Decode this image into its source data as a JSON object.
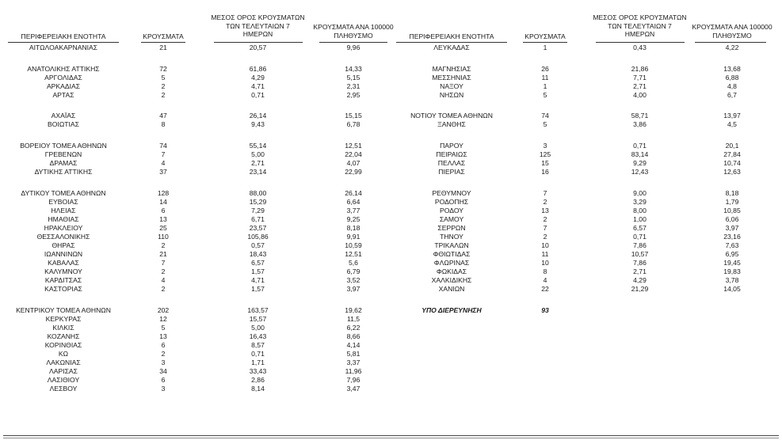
{
  "headers": {
    "region": "ΠΕΡΙΦΕΡΕΙΑΚΗ ΕΝΟΤΗΤΑ",
    "cases": "ΚΡΟΥΣΜΑΤΑ",
    "average_1": "ΜΕΣΟΣ ΟΡΟΣ ΚΡΟΥΣΜΑΤΩΝ",
    "average_2": "ΤΩΝ ΤΕΛΕΥΤΑΙΩΝ 7",
    "average_3": "ΗΜΕΡΩΝ",
    "per100k_1": "ΚΡΟΥΣΜΑΤΑ ΑΝΑ 100000",
    "per100k_2": "ΠΛΗΘΥΣΜΟ"
  },
  "left_rows": [
    {
      "region": "ΑΙΤΩΛΟΑΚΑΡΝΑΝΙΑΣ",
      "cases": "21",
      "avg": "20,57",
      "per100k": "9,96"
    },
    {
      "region": "ΑΝΑΤΟΛΙΚΗΣ ΑΤΤΙΚΗΣ",
      "cases": "72",
      "avg": "61,86",
      "per100k": "14,33",
      "gap": true
    },
    {
      "region": "ΑΡΓΟΛΙΔΑΣ",
      "cases": "5",
      "avg": "4,29",
      "per100k": "5,15"
    },
    {
      "region": "ΑΡΚΑΔΙΑΣ",
      "cases": "2",
      "avg": "4,71",
      "per100k": "2,31"
    },
    {
      "region": "ΑΡΤΑΣ",
      "cases": "2",
      "avg": "0,71",
      "per100k": "2,95"
    },
    {
      "region": "ΑΧΑΪΑΣ",
      "cases": "47",
      "avg": "26,14",
      "per100k": "15,15",
      "gap": true
    },
    {
      "region": "ΒΟΙΩΤΙΑΣ",
      "cases": "8",
      "avg": "9,43",
      "per100k": "6,78"
    },
    {
      "region": "ΒΟΡΕΙΟΥ ΤΟΜΕΑ ΑΘΗΝΩΝ",
      "cases": "74",
      "avg": "55,14",
      "per100k": "12,51",
      "gap": true
    },
    {
      "region": "ΓΡΕΒΕΝΩΝ",
      "cases": "7",
      "avg": "5,00",
      "per100k": "22,04"
    },
    {
      "region": "ΔΡΑΜΑΣ",
      "cases": "4",
      "avg": "2,71",
      "per100k": "4,07"
    },
    {
      "region": "ΔΥΤΙΚΗΣ ΑΤΤΙΚΗΣ",
      "cases": "37",
      "avg": "23,14",
      "per100k": "22,99"
    },
    {
      "region": "ΔΥΤΙΚΟΥ ΤΟΜΕΑ ΑΘΗΝΩΝ",
      "cases": "128",
      "avg": "88,00",
      "per100k": "26,14",
      "gap": true
    },
    {
      "region": "ΕΥΒΟΙΑΣ",
      "cases": "14",
      "avg": "15,29",
      "per100k": "6,64"
    },
    {
      "region": "ΗΛΕΙΑΣ",
      "cases": "6",
      "avg": "7,29",
      "per100k": "3,77"
    },
    {
      "region": "ΗΜΑΘΙΑΣ",
      "cases": "13",
      "avg": "6,71",
      "per100k": "9,25"
    },
    {
      "region": "ΗΡΑΚΛΕΙΟΥ",
      "cases": "25",
      "avg": "23,57",
      "per100k": "8,18"
    },
    {
      "region": "ΘΕΣΣΑΛΟΝΙΚΗΣ",
      "cases": "110",
      "avg": "105,86",
      "per100k": "9,91"
    },
    {
      "region": "ΘΗΡΑΣ",
      "cases": "2",
      "avg": "0,57",
      "per100k": "10,59"
    },
    {
      "region": "ΙΩΑΝΝΙΝΩΝ",
      "cases": "21",
      "avg": "18,43",
      "per100k": "12,51"
    },
    {
      "region": "ΚΑΒΑΛΑΣ",
      "cases": "7",
      "avg": "6,57",
      "per100k": "5,6"
    },
    {
      "region": "ΚΑΛΥΜΝΟΥ",
      "cases": "2",
      "avg": "1,57",
      "per100k": "6,79"
    },
    {
      "region": "ΚΑΡΔΙΤΣΑΣ",
      "cases": "4",
      "avg": "4,71",
      "per100k": "3,52"
    },
    {
      "region": "ΚΑΣΤΟΡΙΑΣ",
      "cases": "2",
      "avg": "1,57",
      "per100k": "3,97"
    },
    {
      "region": "ΚΕΝΤΡΙΚΟΥ ΤΟΜΕΑ ΑΘΗΝΩΝ",
      "cases": "202",
      "avg": "163,57",
      "per100k": "19,62",
      "gap": true
    },
    {
      "region": "ΚΕΡΚΥΡΑΣ",
      "cases": "12",
      "avg": "15,57",
      "per100k": "11,5"
    },
    {
      "region": "ΚΙΛΚΙΣ",
      "cases": "5",
      "avg": "5,00",
      "per100k": "6,22"
    },
    {
      "region": "ΚΟΖΑΝΗΣ",
      "cases": "13",
      "avg": "16,43",
      "per100k": "8,66"
    },
    {
      "region": "ΚΟΡΙΝΘΙΑΣ",
      "cases": "6",
      "avg": "8,57",
      "per100k": "4,14"
    },
    {
      "region": "ΚΩ",
      "cases": "2",
      "avg": "0,71",
      "per100k": "5,81"
    },
    {
      "region": "ΛΑΚΩΝΙΑΣ",
      "cases": "3",
      "avg": "1,71",
      "per100k": "3,37"
    },
    {
      "region": "ΛΑΡΙΣΑΣ",
      "cases": "34",
      "avg": "33,43",
      "per100k": "11,96"
    },
    {
      "region": "ΛΑΣΙΘΙΟΥ",
      "cases": "6",
      "avg": "2,86",
      "per100k": "7,96"
    },
    {
      "region": "ΛΕΣΒΟΥ",
      "cases": "3",
      "avg": "8,14",
      "per100k": "3,47"
    }
  ],
  "right_rows": [
    {
      "region": "ΛΕΥΚΑΔΑΣ",
      "cases": "1",
      "avg": "0,43",
      "per100k": "4,22"
    },
    {
      "region": "ΜΑΓΝΗΣΙΑΣ",
      "cases": "26",
      "avg": "21,86",
      "per100k": "13,68",
      "gap": true
    },
    {
      "region": "ΜΕΣΣΗΝΙΑΣ",
      "cases": "11",
      "avg": "7,71",
      "per100k": "6,88"
    },
    {
      "region": "ΝΑΞΟΥ",
      "cases": "1",
      "avg": "2,71",
      "per100k": "4,8"
    },
    {
      "region": "ΝΗΣΩΝ",
      "cases": "5",
      "avg": "4,00",
      "per100k": "6,7"
    },
    {
      "region": "ΝΟΤΙΟΥ ΤΟΜΕΑ ΑΘΗΝΩΝ",
      "cases": "74",
      "avg": "58,71",
      "per100k": "13,97",
      "gap": true
    },
    {
      "region": "ΞΑΝΘΗΣ",
      "cases": "5",
      "avg": "3,86",
      "per100k": "4,5"
    },
    {
      "region": "ΠΑΡΟΥ",
      "cases": "3",
      "avg": "0,71",
      "per100k": "20,1",
      "gap": true
    },
    {
      "region": "ΠΕΙΡΑΙΩΣ",
      "cases": "125",
      "avg": "83,14",
      "per100k": "27,84"
    },
    {
      "region": "ΠΕΛΛΑΣ",
      "cases": "15",
      "avg": "9,29",
      "per100k": "10,74"
    },
    {
      "region": "ΠΙΕΡΙΑΣ",
      "cases": "16",
      "avg": "12,43",
      "per100k": "12,63"
    },
    {
      "region": "ΡΕΘΥΜΝΟΥ",
      "cases": "7",
      "avg": "9,00",
      "per100k": "8,18",
      "gap": true
    },
    {
      "region": "ΡΟΔΟΠΗΣ",
      "cases": "2",
      "avg": "3,29",
      "per100k": "1,79"
    },
    {
      "region": "ΡΟΔΟΥ",
      "cases": "13",
      "avg": "8,00",
      "per100k": "10,85"
    },
    {
      "region": "ΣΑΜΟΥ",
      "cases": "2",
      "avg": "1,00",
      "per100k": "6,06"
    },
    {
      "region": "ΣΕΡΡΩΝ",
      "cases": "7",
      "avg": "6,57",
      "per100k": "3,97"
    },
    {
      "region": "ΤΗΝΟΥ",
      "cases": "2",
      "avg": "0,71",
      "per100k": "23,16"
    },
    {
      "region": "ΤΡΙΚΑΛΩΝ",
      "cases": "10",
      "avg": "7,86",
      "per100k": "7,63"
    },
    {
      "region": "ΦΘΙΩΤΙΔΑΣ",
      "cases": "11",
      "avg": "10,57",
      "per100k": "6,95"
    },
    {
      "region": "ΦΛΩΡΙΝΑΣ",
      "cases": "10",
      "avg": "7,86",
      "per100k": "19,45"
    },
    {
      "region": "ΦΩΚΙΔΑΣ",
      "cases": "8",
      "avg": "2,71",
      "per100k": "19,83"
    },
    {
      "region": "ΧΑΛΚΙΔΙΚΗΣ",
      "cases": "4",
      "avg": "4,29",
      "per100k": "3,78"
    },
    {
      "region": "ΧΑΝΙΩΝ",
      "cases": "22",
      "avg": "21,29",
      "per100k": "14,05"
    },
    {
      "region": "ΥΠΟ ΔΙΕΡΕΥΝΗΣΗ",
      "cases": "93",
      "avg": "",
      "per100k": "",
      "gap": true,
      "emphasis": true
    }
  ]
}
